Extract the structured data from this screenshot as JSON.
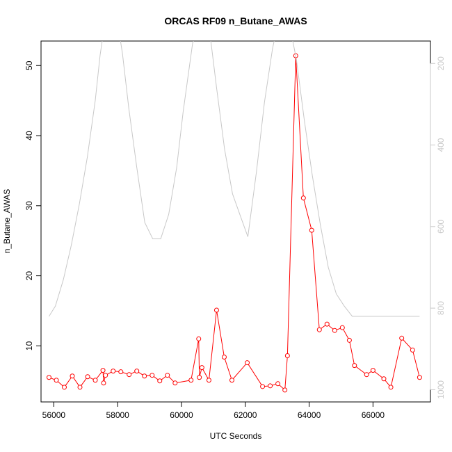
{
  "chart_data": {
    "type": "line",
    "title": "ORCAS RF09 n_Butane_AWAS",
    "xlabel": "UTC Seconds",
    "ylabel": "n_Butane_AWAS",
    "xlim": [
      55600,
      67800
    ],
    "ylim": [
      2,
      53.5
    ],
    "x_ticks": [
      56000,
      58000,
      60000,
      62000,
      64000,
      66000
    ],
    "y_ticks": [
      10,
      20,
      30,
      40,
      50
    ],
    "secondary_axis": {
      "ticks": [
        200,
        400,
        600,
        800,
        1000
      ],
      "lim_top": 145,
      "lim_bottom": 1030
    },
    "series": [
      {
        "color": "#ff0000",
        "marker": "open-circle",
        "x": [
          55850,
          56080,
          56330,
          56580,
          56820,
          57060,
          57300,
          57540,
          57560,
          57620,
          57860,
          58100,
          58360,
          58600,
          58840,
          59080,
          59320,
          59560,
          59800,
          60300,
          60540,
          60560,
          60640,
          60860,
          61100,
          61340,
          61580,
          62060,
          62540,
          62780,
          63020,
          63240,
          63320,
          63580,
          63820,
          64080,
          64320,
          64560,
          64800,
          65040,
          65260,
          65420,
          65800,
          66000,
          66340,
          66560,
          66900,
          67240,
          67460
        ],
        "y": [
          5.5,
          5.1,
          4.1,
          5.7,
          4.1,
          5.6,
          5.1,
          6.5,
          4.7,
          5.8,
          6.4,
          6.3,
          5.9,
          6.4,
          5.7,
          5.8,
          5.0,
          5.8,
          4.7,
          5.1,
          11.0,
          5.5,
          6.9,
          5.1,
          15.1,
          8.4,
          5.1,
          7.6,
          4.2,
          4.3,
          4.6,
          3.7,
          8.6,
          51.4,
          31.1,
          26.5,
          12.3,
          13.1,
          12.2,
          12.6,
          10.8,
          7.2,
          5.9,
          6.5,
          5.3,
          4.1,
          11.1,
          9.4,
          5.5
        ]
      },
      {
        "axis": "secondary",
        "color": "#c8c8c8",
        "x": [
          55850,
          56050,
          56300,
          56550,
          56800,
          57050,
          57300,
          57450,
          57600,
          58000,
          58150,
          58350,
          58600,
          58850,
          59100,
          59350,
          59600,
          59850,
          60050,
          60350,
          60600,
          60850,
          61100,
          61350,
          61600,
          61850,
          62080,
          62350,
          62600,
          62850,
          63100,
          63350,
          63600,
          63850,
          64100,
          64350,
          64600,
          64850,
          65100,
          65350,
          65600,
          65850,
          66100,
          66350,
          66600,
          66850,
          67100,
          67460
        ],
        "y": [
          820,
          795,
          730,
          645,
          545,
          430,
          290,
          180,
          100,
          100,
          175,
          310,
          455,
          590,
          630,
          630,
          570,
          455,
          320,
          150,
          100,
          100,
          260,
          410,
          520,
          575,
          625,
          465,
          295,
          165,
          70,
          90,
          190,
          340,
          475,
          595,
          700,
          765,
          795,
          820,
          820,
          820,
          820,
          820,
          820,
          820,
          820,
          820
        ]
      }
    ]
  }
}
